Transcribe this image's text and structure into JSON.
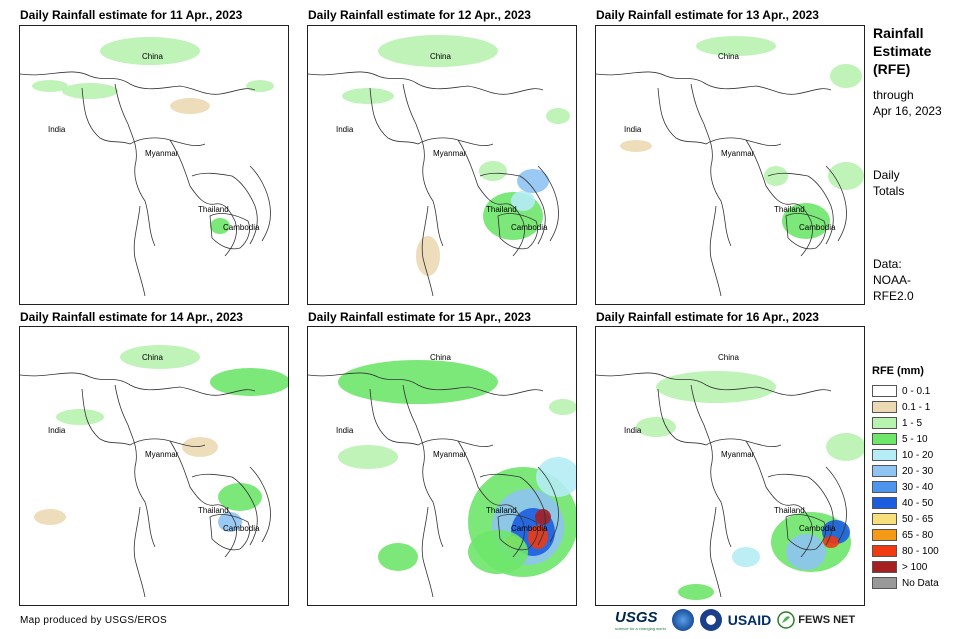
{
  "panels": [
    {
      "title": "Daily Rainfall estimate for 11 Apr., 2023",
      "intensity": 1
    },
    {
      "title": "Daily Rainfall estimate for 12 Apr., 2023",
      "intensity": 2
    },
    {
      "title": "Daily Rainfall estimate for 13 Apr., 2023",
      "intensity": 1
    },
    {
      "title": "Daily Rainfall estimate for 14 Apr., 2023",
      "intensity": 1
    },
    {
      "title": "Daily Rainfall estimate for 15 Apr., 2023",
      "intensity": 3
    },
    {
      "title": "Daily Rainfall estimate for 16 Apr., 2023",
      "intensity": 2
    }
  ],
  "place_labels": {
    "china": "China",
    "india": "India",
    "myanmar": "Myanmar",
    "thailand": "Thailand",
    "cambodia": "Cambodia"
  },
  "sidebar": {
    "title_line1": "Rainfall",
    "title_line2": "Estimate",
    "title_line3": "(RFE)",
    "through": "through",
    "through_date": "Apr 16, 2023",
    "daily": "Daily",
    "totals": "Totals",
    "data_line1": "Data:",
    "data_line2": "NOAA-",
    "data_line3": "RFE2.0"
  },
  "legend": {
    "title": "RFE (mm)",
    "items": [
      {
        "label": "0 - 0.1",
        "color": "#ffffff"
      },
      {
        "label": "0.1 - 1",
        "color": "#ecd9b3"
      },
      {
        "label": "1 - 5",
        "color": "#b8f2b0"
      },
      {
        "label": "5 - 10",
        "color": "#6ee66a"
      },
      {
        "label": "10 - 20",
        "color": "#b5ecf5"
      },
      {
        "label": "20 - 30",
        "color": "#8fc3f2"
      },
      {
        "label": "30 - 40",
        "color": "#4d94ec"
      },
      {
        "label": "40 - 50",
        "color": "#1c5de0"
      },
      {
        "label": "50 - 65",
        "color": "#f7e07c"
      },
      {
        "label": "65 - 80",
        "color": "#f59a16"
      },
      {
        "label": "80 - 100",
        "color": "#f03a12"
      },
      {
        "label": "> 100",
        "color": "#a52020"
      },
      {
        "label": "No Data",
        "color": "#999999"
      }
    ]
  },
  "footer": {
    "credit": "Map produced by USGS/EROS"
  },
  "logos": {
    "usgs": "USGS",
    "usgs_tagline": "science for a changing world",
    "usaid": "USAID",
    "fews": "FEWS NET"
  }
}
